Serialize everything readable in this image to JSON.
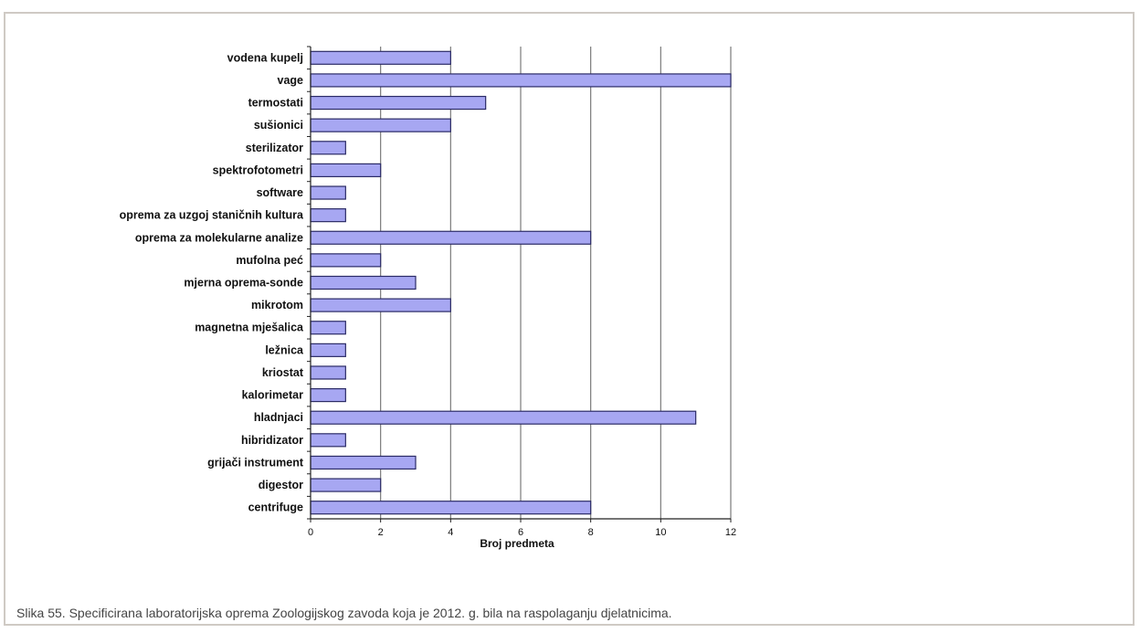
{
  "colors": {
    "bar_fill": "#a7a7f2",
    "bar_stroke": "#2b2b66",
    "gridline": "#7a7a7a",
    "frame_border": "#cfcac4",
    "caption_text": "#444444"
  },
  "chart_data": {
    "type": "bar",
    "orientation": "horizontal",
    "categories": [
      "vodena kupelj",
      "vage",
      "termostati",
      "sušionici",
      "sterilizator",
      "spektrofotometri",
      "software",
      "oprema za uzgoj staničnih kultura",
      "oprema za molekularne analize",
      "mufolna peć",
      "mjerna oprema-sonde",
      "mikrotom",
      "magnetna mješalica",
      "ležnica",
      "kriostat",
      "kalorimetar",
      "hladnjaci",
      "hibridizator",
      "grijači instrument",
      "digestor",
      "centrifuge"
    ],
    "values": [
      4,
      12,
      5,
      4,
      1,
      2,
      1,
      1,
      8,
      2,
      3,
      4,
      1,
      1,
      1,
      1,
      11,
      1,
      3,
      2,
      8
    ],
    "xlabel": "Broj predmeta",
    "ylabel": "",
    "xlim": [
      0,
      12
    ],
    "xticks": [
      "0",
      "2",
      "4",
      "6",
      "8",
      "10",
      "12"
    ],
    "grid": "vertical",
    "legend": "none"
  },
  "caption": "Slika 55. Specificirana laboratorijska oprema Zoologijskog zavoda koja je 2012. g. bila na raspolaganju djelatnicima."
}
